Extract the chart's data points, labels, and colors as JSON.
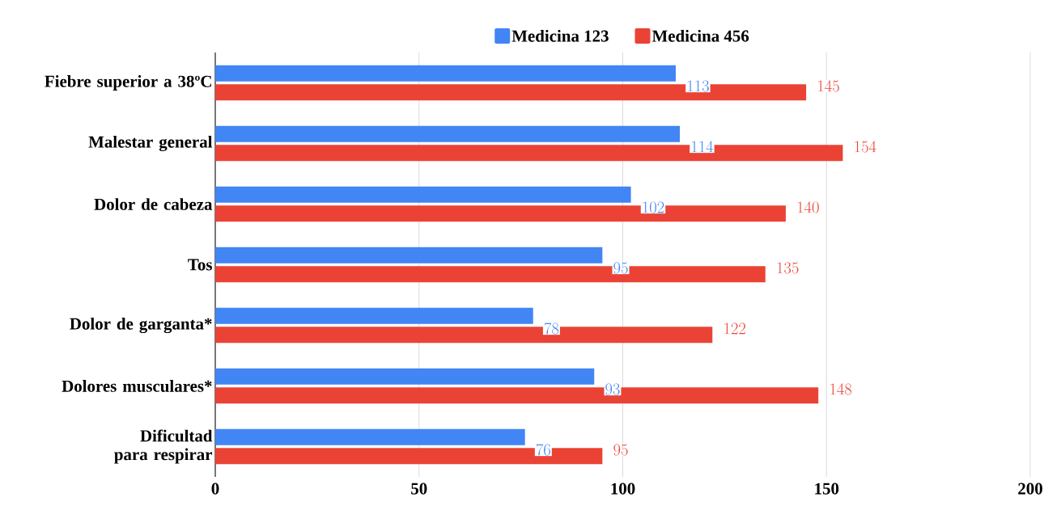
{
  "chart_data": {
    "type": "bar",
    "orientation": "horizontal",
    "categories": [
      "Fiebre superior a 38ºC",
      "Malestar general",
      "Dolor de cabeza",
      "Tos",
      "Dolor de garganta*",
      "Dolores musculares*",
      "Dificultad para respirar"
    ],
    "series": [
      {
        "name": "Medicina 123",
        "color": "#4285f4",
        "values": [
          113,
          114,
          102,
          95,
          78,
          93,
          76
        ]
      },
      {
        "name": "Medicina 456",
        "color": "#ea4335",
        "values": [
          145,
          154,
          140,
          135,
          122,
          148,
          95
        ]
      }
    ],
    "xlim": [
      0,
      200
    ],
    "xticks": [
      0,
      50,
      100,
      150,
      200
    ],
    "grid": "x",
    "legend": "top",
    "data_labels": true
  }
}
